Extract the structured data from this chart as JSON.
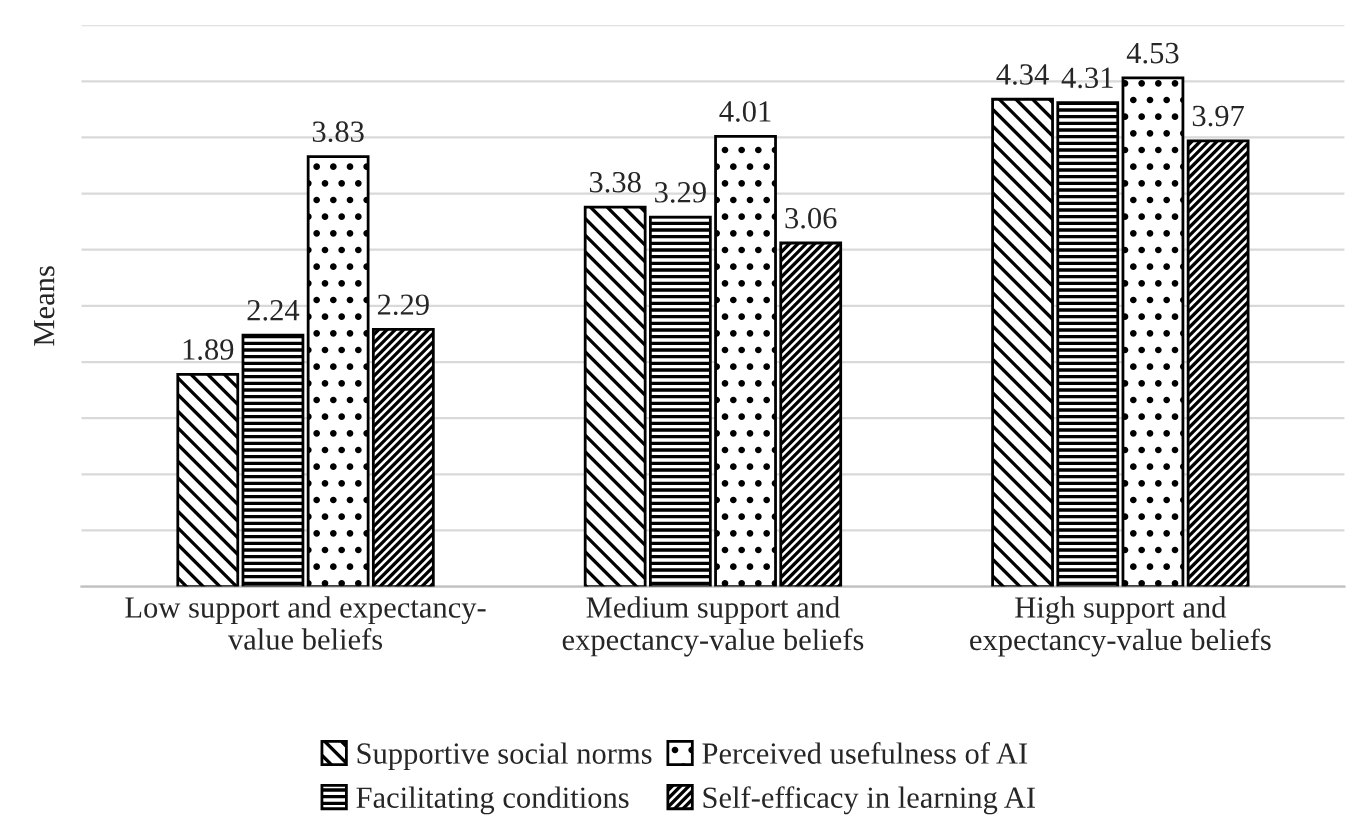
{
  "chart_data": {
    "type": "bar",
    "ylabel": "Means",
    "categories": [
      "Low support and expectancy-\nvalue beliefs",
      "Medium support and\nexpectancy-value beliefs",
      "High support and\nexpectancy-value beliefs"
    ],
    "series": [
      {
        "name": "Supportive social norms",
        "color": "#000000",
        "values": [
          1.89,
          3.38,
          4.34
        ]
      },
      {
        "name": "Facilitating conditions",
        "color": "#000000",
        "values": [
          2.24,
          3.29,
          4.31
        ]
      },
      {
        "name": "Perceived usefulness of AI",
        "color": "#000000",
        "values": [
          3.83,
          4.01,
          4.53
        ]
      },
      {
        "name": "Self-efficacy in learning AI",
        "color": "#000000",
        "values": [
          2.29,
          3.06,
          3.97
        ]
      }
    ],
    "ylim": [
      0,
      5
    ],
    "yticks": [
      {
        "value": 0,
        "label": null
      },
      {
        "value": 0.5,
        "label": null
      },
      {
        "value": 1,
        "label": null
      },
      {
        "value": 1.5,
        "label": null
      },
      {
        "value": 2,
        "label": null
      },
      {
        "value": 2.5,
        "label": null
      },
      {
        "value": 3,
        "label": null
      },
      {
        "value": 3.5,
        "label": null
      },
      {
        "value": 4,
        "label": null
      },
      {
        "value": 4.5,
        "label": null
      },
      {
        "value": 5,
        "label": null
      }
    ],
    "grid": "y",
    "legend": "bottom",
    "data_labels": true
  }
}
